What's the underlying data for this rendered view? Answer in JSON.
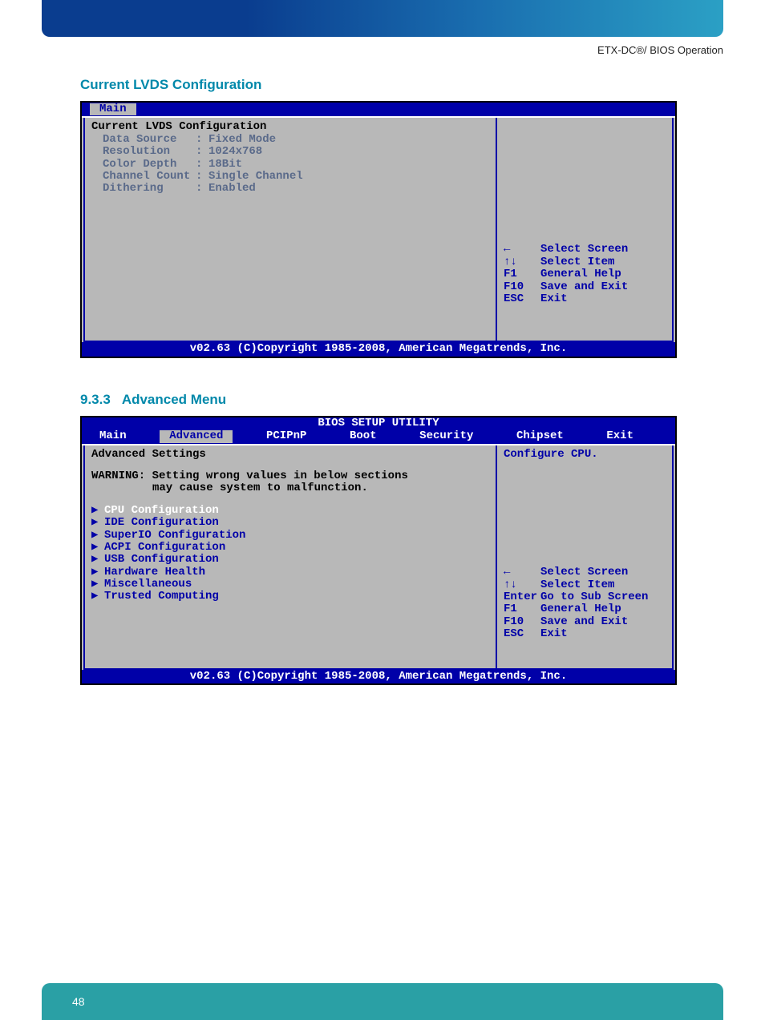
{
  "header_right": "ETX-DC®/ BIOS Operation",
  "page_number": "48",
  "section1_title": "Current LVDS Configuration",
  "section2_num": "9.3.3",
  "section2_title": "Advanced Menu",
  "bios_copyright": "v02.63 (C)Copyright 1985-2008, American Megatrends, Inc.",
  "bios_setup_title": "BIOS SETUP UTILITY",
  "colors": {
    "bios_blue": "#0000a8",
    "bios_gray": "#b8b8b8",
    "bios_info": "#5a6a8a",
    "brand_teal": "#0088aa",
    "footer_teal": "#2aa0a5"
  },
  "lvds": {
    "tab": "Main",
    "heading": "Current LVDS Configuration",
    "rows": [
      {
        "label": "Data Source",
        "value": "Fixed Mode"
      },
      {
        "label": "Resolution",
        "value": "1024x768"
      },
      {
        "label": "Color Depth",
        "value": "18Bit"
      },
      {
        "label": "Channel Count",
        "value": "Single Channel"
      },
      {
        "label": "Dithering",
        "value": "Enabled"
      }
    ],
    "help": [
      {
        "key": "←",
        "text": "Select Screen"
      },
      {
        "key": "↑↓",
        "text": "Select Item"
      },
      {
        "key": "F1",
        "text": "General Help"
      },
      {
        "key": "F10",
        "text": "Save and Exit"
      },
      {
        "key": "ESC",
        "text": "Exit"
      }
    ]
  },
  "advanced": {
    "tabs": [
      "Main",
      "Advanced",
      "PCIPnP",
      "Boot",
      "Security",
      "Chipset",
      "Exit"
    ],
    "active_tab_index": 1,
    "subtitle": "Advanced Settings",
    "warning_label": "WARNING:",
    "warning_line1": "Setting wrong values in below sections",
    "warning_line2": "may cause system to malfunction.",
    "right_info": "Configure CPU.",
    "items": [
      "CPU Configuration",
      "IDE Configuration",
      "SuperIO Configuration",
      "ACPI Configuration",
      "USB Configuration",
      "Hardware Health",
      "Miscellaneous",
      "Trusted Computing"
    ],
    "selected_index": 0,
    "help": [
      {
        "key": "←",
        "text": "Select Screen"
      },
      {
        "key": "↑↓",
        "text": "Select Item"
      },
      {
        "key": "Enter",
        "text": "Go to Sub Screen"
      },
      {
        "key": "F1",
        "text": "General Help"
      },
      {
        "key": "F10",
        "text": "Save and Exit"
      },
      {
        "key": "ESC",
        "text": "Exit"
      }
    ]
  }
}
